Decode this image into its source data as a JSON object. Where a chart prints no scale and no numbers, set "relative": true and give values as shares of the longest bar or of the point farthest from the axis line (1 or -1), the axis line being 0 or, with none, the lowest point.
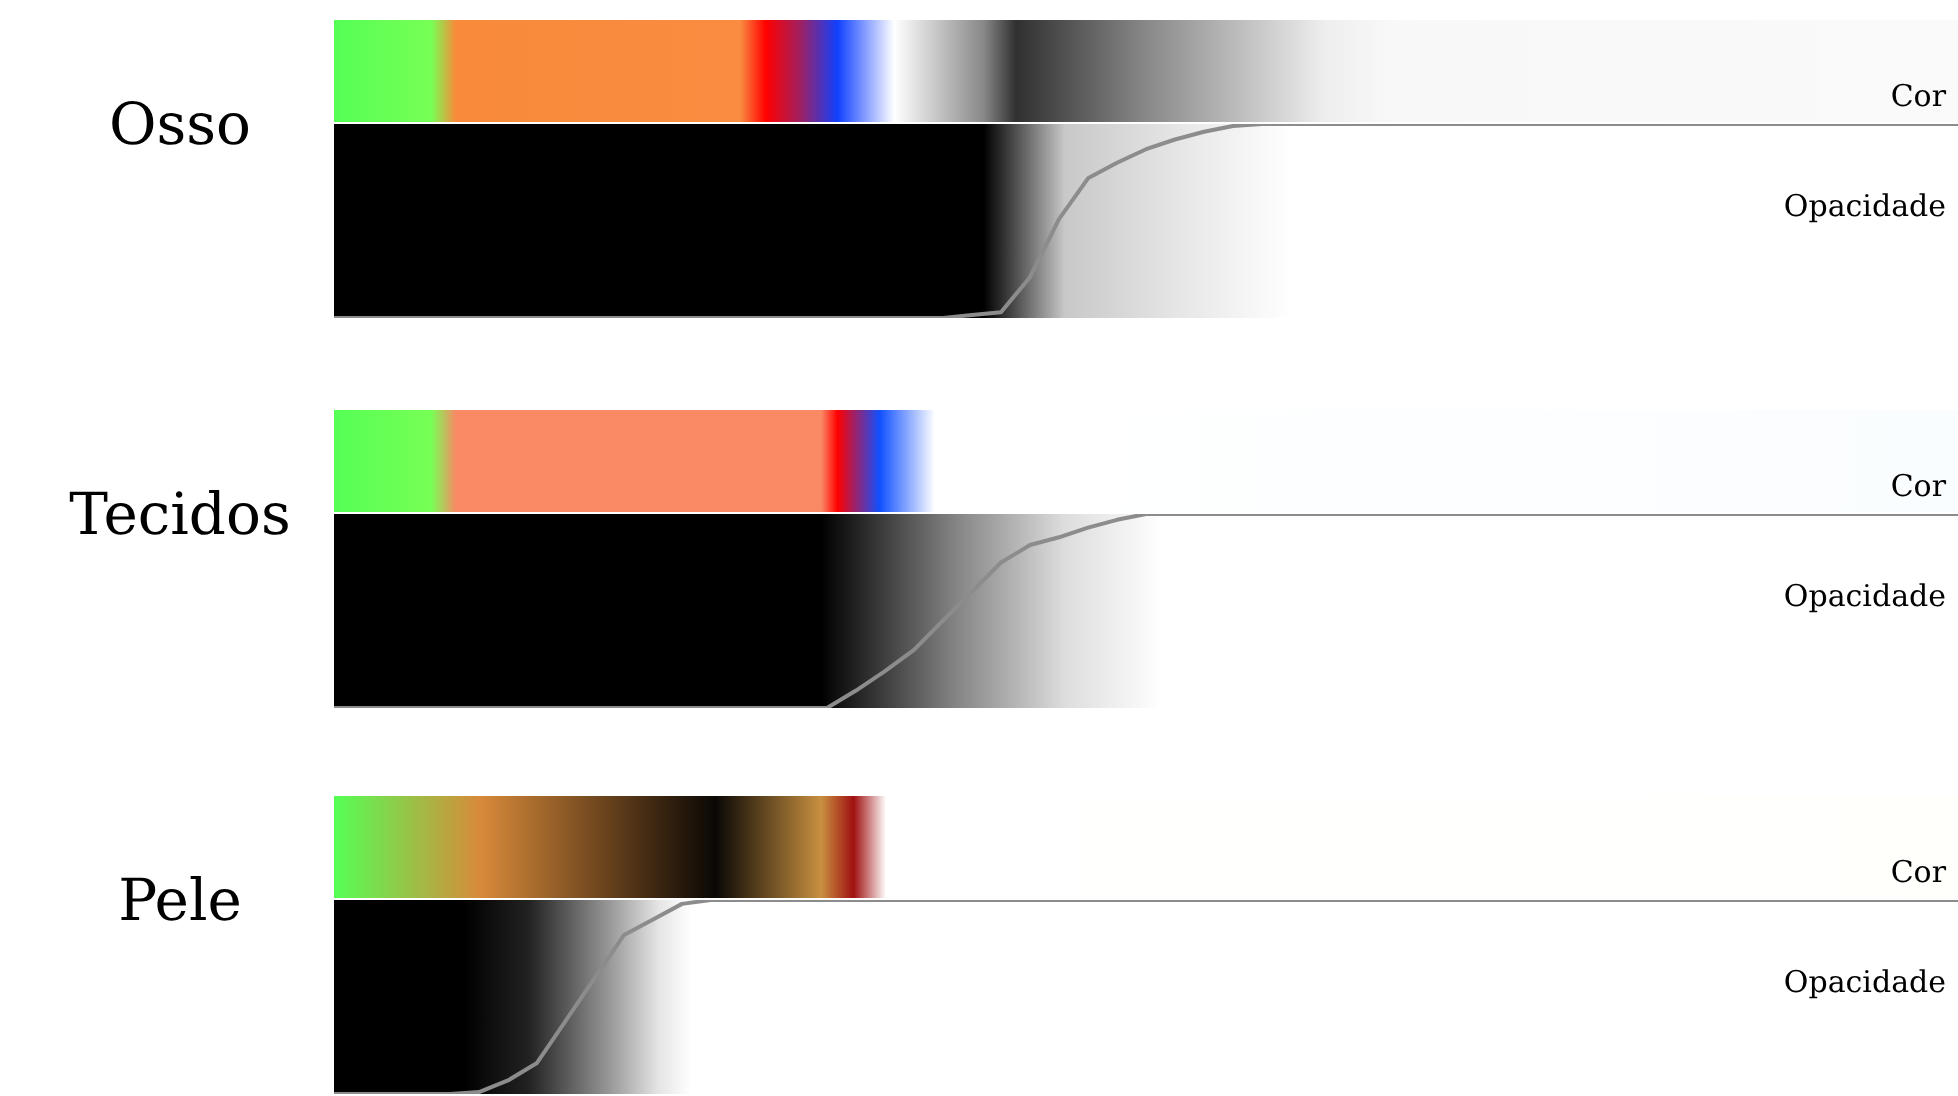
{
  "chart_data": [
    {
      "type": "line",
      "title": "Osso",
      "annotations": [
        "Cor",
        "Opacidade"
      ],
      "relative": true,
      "categories": [
        null,
        null,
        null,
        null,
        null,
        null,
        null,
        null,
        null,
        null,
        null,
        null,
        null,
        null,
        null,
        null,
        null,
        null,
        null,
        null,
        null,
        null,
        null,
        null,
        null,
        null,
        null,
        null,
        null,
        null,
        null,
        null,
        null,
        null,
        null,
        null,
        null,
        null,
        null,
        null,
        null,
        null,
        null,
        null,
        null,
        null,
        null,
        null,
        null,
        null,
        null,
        null,
        null,
        null,
        null,
        null,
        null
      ],
      "series": [
        {
          "color": "#8c8c8c",
          "values": [
            0,
            0,
            0,
            0,
            0,
            0,
            0,
            0,
            0,
            0,
            0,
            0,
            0,
            0,
            0,
            0,
            0,
            0,
            0,
            0,
            0,
            0,
            0.016,
            0.03,
            0.21,
            0.51,
            0.72,
            0.8,
            0.87,
            0.92,
            0.96,
            0.99,
            1,
            1,
            1,
            1,
            1,
            1,
            1,
            1,
            1,
            1,
            1,
            1,
            1,
            1,
            1,
            1,
            1,
            1,
            1,
            1,
            1,
            1,
            1,
            1,
            1
          ]
        }
      ]
    },
    {
      "type": "line",
      "title": "Tecidos",
      "annotations": [
        "Cor",
        "Opacidade"
      ],
      "relative": true,
      "categories": [
        null,
        null,
        null,
        null,
        null,
        null,
        null,
        null,
        null,
        null,
        null,
        null,
        null,
        null,
        null,
        null,
        null,
        null,
        null,
        null,
        null,
        null,
        null,
        null,
        null,
        null,
        null,
        null,
        null,
        null,
        null,
        null,
        null,
        null,
        null,
        null,
        null,
        null,
        null,
        null,
        null,
        null,
        null,
        null,
        null,
        null,
        null,
        null,
        null,
        null,
        null,
        null,
        null,
        null,
        null,
        null,
        null
      ],
      "series": [
        {
          "color": "#8c8c8c",
          "values": [
            0,
            0,
            0,
            0,
            0,
            0,
            0,
            0,
            0,
            0,
            0,
            0,
            0,
            0,
            0,
            0,
            0,
            0,
            0.09,
            0.19,
            0.3,
            0.45,
            0.6,
            0.75,
            0.84,
            0.88,
            0.93,
            0.97,
            1,
            1,
            1,
            1,
            1,
            1,
            1,
            1,
            1,
            1,
            1,
            1,
            1,
            1,
            1,
            1,
            1,
            1,
            1,
            1,
            1,
            1,
            1,
            1,
            1,
            1,
            1,
            1,
            1
          ]
        }
      ]
    },
    {
      "type": "line",
      "title": "Pele",
      "annotations": [
        "Cor",
        "Opacidade"
      ],
      "relative": true,
      "categories": [
        null,
        null,
        null,
        null,
        null,
        null,
        null,
        null,
        null,
        null,
        null,
        null,
        null,
        null,
        null,
        null,
        null,
        null,
        null,
        null,
        null,
        null,
        null,
        null,
        null,
        null,
        null,
        null,
        null,
        null,
        null,
        null,
        null,
        null,
        null,
        null,
        null,
        null,
        null,
        null,
        null,
        null,
        null,
        null,
        null,
        null,
        null,
        null,
        null,
        null,
        null,
        null,
        null,
        null,
        null,
        null,
        null
      ],
      "series": [
        {
          "color": "#8c8c8c",
          "values": [
            0,
            0,
            0,
            0,
            0,
            0.01,
            0.07,
            0.16,
            0.38,
            0.6,
            0.82,
            0.9,
            0.98,
            1,
            1,
            1,
            1,
            1,
            1,
            1,
            1,
            1,
            1,
            1,
            1,
            1,
            1,
            1,
            1,
            1,
            1,
            1,
            1,
            1,
            1,
            1,
            1,
            1,
            1,
            1,
            1,
            1,
            1,
            1,
            1,
            1,
            1,
            1,
            1,
            1,
            1,
            1,
            1,
            1,
            1,
            1,
            1
          ]
        }
      ]
    }
  ]
}
